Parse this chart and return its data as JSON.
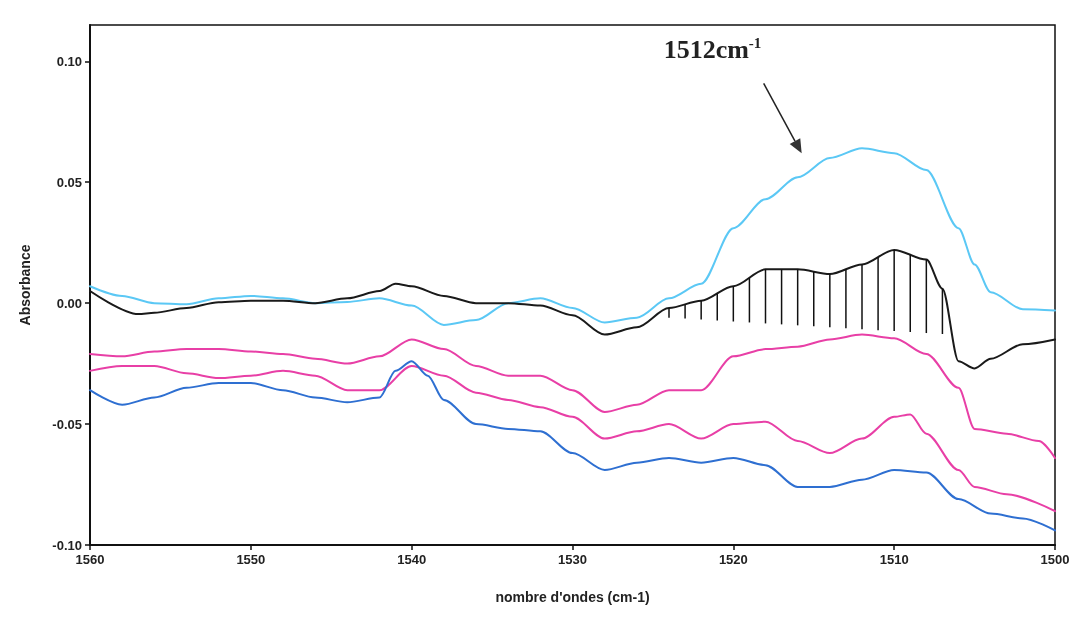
{
  "chart_data": {
    "type": "line",
    "xlabel": "nombre d'ondes (cm-1)",
    "ylabel": "Absorbance",
    "annotations": [
      "1512cm$^{-1}$"
    ],
    "xlim": [
      1560,
      1500
    ],
    "xticks": [
      1560,
      1550,
      1540,
      1530,
      1520,
      1510,
      1500
    ],
    "ylim": [
      -0.1,
      0.115
    ],
    "yticks": [
      {
        "value": -0.1,
        "label": "-0.10"
      },
      {
        "value": -0.05,
        "label": "-0.05"
      },
      {
        "value": 0,
        "label": "0.00"
      },
      {
        "value": 0.05,
        "label": "0.05"
      },
      {
        "value": 0.1,
        "label": "0.10"
      }
    ],
    "grid": false,
    "marker": "none",
    "line_style": "solid",
    "series": [
      {
        "color": "#5bc8f5",
        "x": [
          1560,
          1558,
          1556,
          1554,
          1552,
          1550,
          1548,
          1546,
          1544,
          1542,
          1540,
          1538,
          1536,
          1534,
          1532,
          1530,
          1528,
          1526,
          1524,
          1522,
          1520,
          1518,
          1516,
          1514,
          1512,
          1510,
          1508,
          1506,
          1505,
          1504,
          1502,
          1500
        ],
        "values": [
          0.007,
          0.003,
          0.0,
          -0.0005,
          0.002,
          0.003,
          0.002,
          0.0,
          0.0005,
          0.002,
          -0.001,
          -0.009,
          -0.007,
          0.0,
          0.002,
          -0.002,
          -0.008,
          -0.006,
          0.002,
          0.008,
          0.031,
          0.043,
          0.052,
          0.06,
          0.064,
          0.062,
          0.055,
          0.031,
          0.016,
          0.0045,
          -0.0025,
          -0.003
        ]
      },
      {
        "color": "#1a1a1a",
        "x": [
          1560,
          1557,
          1556,
          1554,
          1552,
          1550,
          1548,
          1546,
          1544,
          1542,
          1541,
          1540,
          1538,
          1536,
          1534,
          1532,
          1530,
          1528,
          1526,
          1524,
          1522,
          1520,
          1518,
          1516,
          1514,
          1512,
          1510,
          1508,
          1507,
          1506,
          1505,
          1504,
          1502,
          1500
        ],
        "values": [
          0.005,
          -0.0045,
          -0.004,
          -0.002,
          0.0004,
          0.001,
          0.001,
          0.0,
          0.002,
          0.005,
          0.008,
          0.007,
          0.003,
          0.0,
          0.0,
          -0.001,
          -0.005,
          -0.013,
          -0.01,
          -0.002,
          0.001,
          0.007,
          0.014,
          0.014,
          0.012,
          0.016,
          0.022,
          0.018,
          0.006,
          -0.024,
          -0.027,
          -0.023,
          -0.017,
          -0.015
        ]
      },
      {
        "color": "#e83fa6",
        "x": [
          1560,
          1558,
          1556,
          1554,
          1552,
          1550,
          1548,
          1546,
          1544,
          1542,
          1540,
          1538,
          1536,
          1534,
          1532,
          1530,
          1528,
          1526,
          1524,
          1522,
          1520,
          1518,
          1516,
          1514,
          1512,
          1510,
          1508,
          1506,
          1505,
          1503,
          1501,
          1500
        ],
        "values": [
          -0.021,
          -0.022,
          -0.02,
          -0.019,
          -0.019,
          -0.02,
          -0.021,
          -0.023,
          -0.025,
          -0.022,
          -0.015,
          -0.019,
          -0.026,
          -0.03,
          -0.03,
          -0.036,
          -0.045,
          -0.042,
          -0.036,
          -0.036,
          -0.022,
          -0.019,
          -0.018,
          -0.015,
          -0.013,
          -0.0145,
          -0.021,
          -0.035,
          -0.052,
          -0.054,
          -0.057,
          -0.064
        ]
      },
      {
        "color": "#e83fa6",
        "x": [
          1560,
          1558,
          1556,
          1554,
          1552,
          1550,
          1548,
          1546,
          1544,
          1542,
          1540,
          1538,
          1536,
          1534,
          1532,
          1530,
          1528,
          1526,
          1524,
          1522,
          1520,
          1518,
          1516,
          1514,
          1512,
          1510,
          1509,
          1508,
          1506,
          1505,
          1503,
          1500
        ],
        "values": [
          -0.028,
          -0.026,
          -0.026,
          -0.029,
          -0.031,
          -0.03,
          -0.028,
          -0.03,
          -0.036,
          -0.036,
          -0.026,
          -0.03,
          -0.037,
          -0.04,
          -0.043,
          -0.047,
          -0.056,
          -0.053,
          -0.05,
          -0.056,
          -0.05,
          -0.049,
          -0.057,
          -0.062,
          -0.056,
          -0.047,
          -0.046,
          -0.054,
          -0.069,
          -0.076,
          -0.079,
          -0.086
        ]
      },
      {
        "color": "#2e6fd1",
        "x": [
          1560,
          1558,
          1556,
          1554,
          1552,
          1550,
          1548,
          1546,
          1544,
          1542,
          1541,
          1540,
          1539,
          1538,
          1536,
          1534,
          1532,
          1530,
          1528,
          1526,
          1524,
          1522,
          1520,
          1518,
          1516,
          1514,
          1512,
          1510,
          1508,
          1506,
          1504,
          1502,
          1500
        ],
        "values": [
          -0.036,
          -0.042,
          -0.039,
          -0.035,
          -0.033,
          -0.033,
          -0.036,
          -0.039,
          -0.041,
          -0.039,
          -0.028,
          -0.024,
          -0.03,
          -0.04,
          -0.05,
          -0.052,
          -0.053,
          -0.062,
          -0.069,
          -0.066,
          -0.064,
          -0.066,
          -0.064,
          -0.067,
          -0.076,
          -0.076,
          -0.073,
          -0.069,
          -0.07,
          -0.081,
          -0.087,
          -0.089,
          -0.094
        ]
      }
    ]
  }
}
